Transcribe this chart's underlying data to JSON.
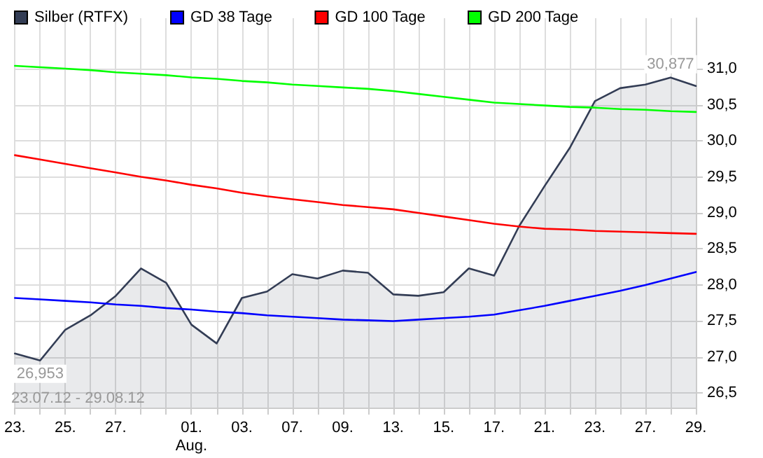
{
  "chart_data": {
    "type": "line",
    "categories": [
      "23.",
      null,
      "25.",
      null,
      "27.",
      null,
      null,
      "01.\nAug.",
      null,
      "03.",
      null,
      "07.",
      null,
      "09.",
      null,
      "13.",
      null,
      "15.",
      null,
      "17.",
      null,
      "21.",
      null,
      "23.",
      null,
      "27.",
      null,
      "29."
    ],
    "series": [
      {
        "name": "Silber (RTFX)",
        "type": "area",
        "color": "#333d55",
        "values": [
          27.05,
          26.953,
          27.38,
          27.58,
          27.85,
          28.23,
          28.03,
          27.45,
          27.19,
          27.82,
          27.91,
          28.15,
          28.09,
          28.2,
          28.17,
          27.87,
          27.85,
          27.9,
          28.23,
          28.13,
          28.82,
          29.37,
          29.9,
          30.55,
          30.73,
          30.78,
          30.877,
          30.76
        ]
      },
      {
        "name": "GD 38 Tage",
        "color": "#0000ff",
        "values": [
          27.82,
          27.8,
          27.78,
          27.76,
          27.73,
          27.71,
          27.68,
          27.66,
          27.63,
          27.61,
          27.58,
          27.56,
          27.54,
          27.52,
          27.51,
          27.5,
          27.52,
          27.54,
          27.56,
          27.59,
          27.65,
          27.71,
          27.78,
          27.85,
          27.92,
          28.0,
          28.09,
          28.18
        ]
      },
      {
        "name": "GD 100 Tage",
        "color": "#ff0000",
        "values": [
          29.8,
          29.74,
          29.68,
          29.62,
          29.56,
          29.5,
          29.45,
          29.39,
          29.34,
          29.28,
          29.23,
          29.19,
          29.15,
          29.11,
          29.08,
          29.05,
          29.0,
          28.95,
          28.9,
          28.85,
          28.81,
          28.78,
          28.77,
          28.75,
          28.74,
          28.73,
          28.72,
          28.71
        ]
      },
      {
        "name": "GD 200 Tage",
        "color": "#00ff00",
        "values": [
          31.04,
          31.02,
          31.0,
          30.98,
          30.95,
          30.93,
          30.91,
          30.88,
          30.86,
          30.83,
          30.81,
          30.78,
          30.76,
          30.74,
          30.72,
          30.69,
          30.65,
          30.61,
          30.57,
          30.53,
          30.51,
          30.49,
          30.47,
          30.46,
          30.44,
          30.43,
          30.41,
          30.4
        ]
      }
    ],
    "ylim": [
      26.3,
      31.7
    ],
    "yticks": [
      {
        "value": 26.5,
        "label": "26,5"
      },
      {
        "value": 27.0,
        "label": "27,0"
      },
      {
        "value": 27.5,
        "label": "27,5"
      },
      {
        "value": 28.0,
        "label": "28,0"
      },
      {
        "value": 28.5,
        "label": "28,5"
      },
      {
        "value": 29.0,
        "label": "29,0"
      },
      {
        "value": 29.5,
        "label": "29,5"
      },
      {
        "value": 30.0,
        "label": "30,0"
      },
      {
        "value": 30.5,
        "label": "30,5"
      },
      {
        "value": 31.0,
        "label": "31,0"
      }
    ],
    "annotations": [
      {
        "text": "26,953",
        "y": 26.953
      },
      {
        "text": "30,877",
        "y": 30.877
      },
      "23.07.12 - 29.08.12"
    ],
    "grid": true,
    "legend": "top left",
    "marker": "none",
    "line_style": "solid"
  }
}
